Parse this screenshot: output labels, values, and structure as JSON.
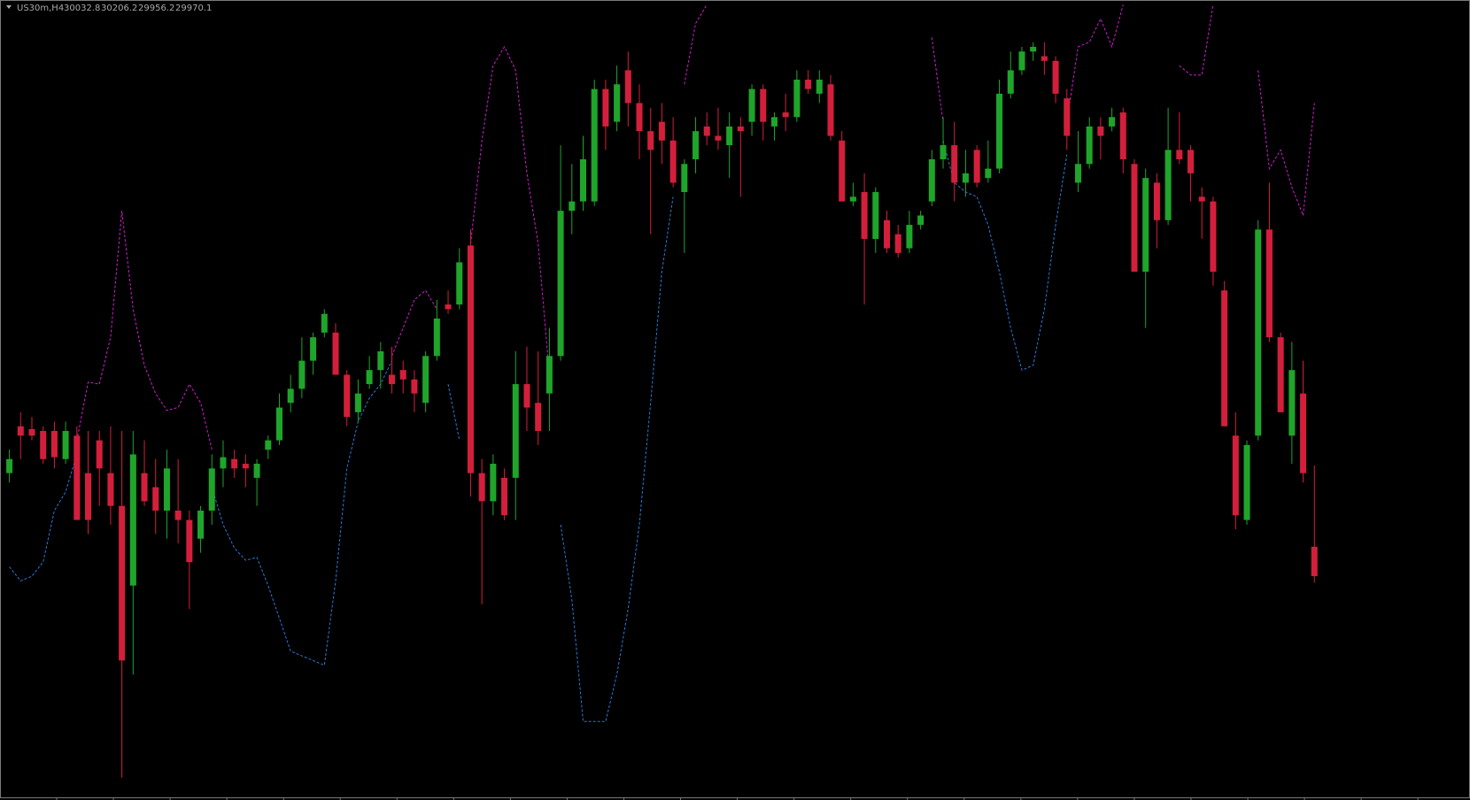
{
  "chart_data": {
    "type": "candlestick",
    "title": "US30m,H4",
    "ylim": [
      29492,
      31200
    ],
    "up_color": "#1fa52a",
    "down_color": "#d41f3c",
    "ohlc": [
      [
        30190,
        30240,
        30170,
        30220
      ],
      [
        30290,
        30320,
        30220,
        30270
      ],
      [
        30284,
        30310,
        30260,
        30270
      ],
      [
        30280,
        30290,
        30210,
        30220
      ],
      [
        30280,
        30300,
        30200,
        30224
      ],
      [
        30220,
        30300,
        30210,
        30280
      ],
      [
        30270,
        30290,
        30090,
        30090
      ],
      [
        30190,
        30280,
        30060,
        30090
      ],
      [
        30260,
        30280,
        30120,
        30200
      ],
      [
        30190,
        30290,
        30080,
        30120
      ],
      [
        30120,
        30280,
        29540,
        29790
      ],
      [
        29950,
        30280,
        29760,
        30230
      ],
      [
        30190,
        30260,
        30120,
        30130
      ],
      [
        30160,
        30220,
        30060,
        30110
      ],
      [
        30110,
        30240,
        30050,
        30200
      ],
      [
        30110,
        30220,
        30040,
        30090
      ],
      [
        30090,
        30110,
        29900,
        30000
      ],
      [
        30050,
        30120,
        30020,
        30110
      ],
      [
        30110,
        30230,
        30080,
        30200
      ],
      [
        30200,
        30260,
        30160,
        30224
      ],
      [
        30220,
        30240,
        30180,
        30200
      ],
      [
        30210,
        30230,
        30160,
        30200
      ],
      [
        30180,
        30220,
        30120,
        30210
      ],
      [
        30240,
        30270,
        30220,
        30260
      ],
      [
        30260,
        30360,
        30250,
        30330
      ],
      [
        30340,
        30400,
        30320,
        30370
      ],
      [
        30370,
        30480,
        30350,
        30430
      ],
      [
        30430,
        30490,
        30400,
        30480
      ],
      [
        30490,
        30540,
        30480,
        30530
      ],
      [
        30490,
        30510,
        30400,
        30400
      ],
      [
        30400,
        30410,
        30290,
        30310
      ],
      [
        30320,
        30390,
        30300,
        30360
      ],
      [
        30380,
        30440,
        30370,
        30410
      ],
      [
        30410,
        30470,
        30370,
        30450
      ],
      [
        30400,
        30460,
        30360,
        30380
      ],
      [
        30410,
        30430,
        30360,
        30390
      ],
      [
        30390,
        30410,
        30320,
        30360
      ],
      [
        30340,
        30450,
        30320,
        30440
      ],
      [
        30440,
        30560,
        30430,
        30520
      ],
      [
        30550,
        30580,
        30530,
        30540
      ],
      [
        30550,
        30670,
        30540,
        30640
      ],
      [
        30676,
        30710,
        30140,
        30190
      ],
      [
        30190,
        30220,
        29910,
        30130
      ],
      [
        30130,
        30230,
        30100,
        30210
      ],
      [
        30180,
        30200,
        30090,
        30100
      ],
      [
        30180,
        30450,
        30090,
        30380
      ],
      [
        30380,
        30460,
        30280,
        30330
      ],
      [
        30340,
        30450,
        30250,
        30280
      ],
      [
        30360,
        30500,
        30280,
        30440
      ],
      [
        30440,
        30890,
        30430,
        30750
      ],
      [
        30750,
        30850,
        30700,
        30770
      ],
      [
        30770,
        30910,
        30750,
        30860
      ],
      [
        30770,
        31030,
        30760,
        31010
      ],
      [
        31010,
        31030,
        30880,
        30930
      ],
      [
        30940,
        31060,
        30920,
        31020
      ],
      [
        31050,
        31090,
        30930,
        30980
      ],
      [
        30980,
        31020,
        30860,
        30920
      ],
      [
        30920,
        30970,
        30700,
        30880
      ],
      [
        30940,
        30980,
        30850,
        30900
      ],
      [
        30900,
        30950,
        30800,
        30810
      ],
      [
        30790,
        30860,
        30660,
        30850
      ],
      [
        30860,
        30950,
        30830,
        30920
      ],
      [
        30930,
        30960,
        30890,
        30910
      ],
      [
        30910,
        30970,
        30880,
        30900
      ],
      [
        30890,
        30960,
        30820,
        30930
      ],
      [
        30930,
        30950,
        30780,
        30920
      ],
      [
        30940,
        31020,
        30910,
        31010
      ],
      [
        31010,
        31020,
        30900,
        30940
      ],
      [
        30930,
        30960,
        30900,
        30950
      ],
      [
        30960,
        31000,
        30920,
        30950
      ],
      [
        30950,
        31050,
        30940,
        31030
      ],
      [
        31030,
        31050,
        31000,
        31010
      ],
      [
        31000,
        31050,
        30980,
        31030
      ],
      [
        31020,
        31040,
        30900,
        30910
      ],
      [
        30900,
        30920,
        30770,
        30770
      ],
      [
        30770,
        30810,
        30760,
        30780
      ],
      [
        30790,
        30830,
        30550,
        30690
      ],
      [
        30690,
        30800,
        30660,
        30790
      ],
      [
        30730,
        30750,
        30660,
        30670
      ],
      [
        30700,
        30720,
        30650,
        30660
      ],
      [
        30670,
        30750,
        30660,
        30720
      ],
      [
        30720,
        30750,
        30710,
        30740
      ],
      [
        30770,
        30880,
        30760,
        30860
      ],
      [
        30860,
        30950,
        30840,
        30890
      ],
      [
        30890,
        30940,
        30770,
        30810
      ],
      [
        30810,
        30880,
        30780,
        30830
      ],
      [
        30880,
        30890,
        30800,
        30810
      ],
      [
        30820,
        30900,
        30810,
        30840
      ],
      [
        30840,
        31030,
        30830,
        31000
      ],
      [
        31000,
        31090,
        30990,
        31050
      ],
      [
        31050,
        31100,
        31040,
        31090
      ],
      [
        31090,
        31110,
        31070,
        31100
      ],
      [
        31080,
        31110,
        31040,
        31070
      ],
      [
        31070,
        31080,
        30980,
        31000
      ],
      [
        30990,
        31010,
        30880,
        30910
      ],
      [
        30810,
        30920,
        30790,
        30850
      ],
      [
        30850,
        30950,
        30840,
        30930
      ],
      [
        30930,
        30950,
        30860,
        30910
      ],
      [
        30930,
        30970,
        30920,
        30950
      ],
      [
        30960,
        30970,
        30830,
        30860
      ],
      [
        30850,
        30860,
        30620,
        30620
      ],
      [
        30620,
        30840,
        30500,
        30820
      ],
      [
        30810,
        30830,
        30670,
        30730
      ],
      [
        30730,
        30970,
        30720,
        30880
      ],
      [
        30880,
        30960,
        30850,
        30860
      ],
      [
        30880,
        30890,
        30770,
        30830
      ],
      [
        30780,
        30800,
        30690,
        30770
      ],
      [
        30770,
        30780,
        30590,
        30620
      ],
      [
        30580,
        30600,
        30290,
        30290
      ],
      [
        30270,
        30320,
        30070,
        30100
      ],
      [
        30090,
        30260,
        30080,
        30250
      ],
      [
        30270,
        30730,
        30260,
        30710
      ],
      [
        30710,
        30810,
        30470,
        30480
      ],
      [
        30480,
        30490,
        30320,
        30320
      ],
      [
        30270,
        30470,
        30210,
        30410
      ],
      [
        30360,
        30430,
        30170,
        30190
      ],
      [
        30032.8,
        30206.2,
        29956.2,
        29970.1
      ]
    ],
    "series": [
      {
        "color": "#c81ec8",
        "values": [
          null,
          null,
          null,
          null,
          null,
          null,
          30260,
          30384,
          30380,
          30480,
          30750,
          30540,
          30420,
          30360,
          30324,
          30330,
          30380,
          30340,
          30240,
          null,
          null,
          null,
          null,
          null,
          null,
          null,
          null,
          null,
          null,
          null,
          null,
          null,
          null,
          null,
          30440,
          30500,
          30560,
          30580,
          30540,
          null,
          null,
          30680,
          30900,
          31060,
          31100,
          31050,
          30830,
          30680,
          30400,
          null,
          null,
          null,
          null,
          null,
          null,
          null,
          null,
          null,
          null,
          null,
          31020,
          31150,
          31190,
          null,
          null,
          null,
          null,
          null,
          null,
          null,
          null,
          null,
          null,
          null,
          null,
          null,
          null,
          null,
          null,
          null,
          null,
          null,
          31120,
          30940,
          null,
          null,
          null,
          null,
          null,
          null,
          null,
          null,
          null,
          null,
          30940,
          31100,
          31110,
          31160,
          31100,
          31190,
          null,
          null,
          null,
          null,
          31060,
          31040,
          31040,
          31190,
          null,
          null,
          null,
          31050,
          30840,
          30880,
          30800,
          30740,
          30980
        ]
      },
      {
        "color": "#2a78d6",
        "values": [
          29990,
          29960,
          29970,
          30000,
          30110,
          30150,
          30230,
          null,
          null,
          null,
          null,
          null,
          null,
          null,
          null,
          null,
          null,
          null,
          30160,
          30080,
          30030,
          30004,
          30010,
          29950,
          29880,
          29810,
          29800,
          29790,
          29780,
          29960,
          30200,
          30300,
          30350,
          30380,
          30430,
          null,
          null,
          null,
          null,
          30380,
          30260,
          null,
          null,
          null,
          null,
          null,
          null,
          null,
          null,
          30080,
          29920,
          29660,
          29660,
          29660,
          29760,
          29900,
          30080,
          30340,
          30620,
          30780,
          null,
          null,
          null,
          null,
          null,
          null,
          null,
          null,
          null,
          null,
          null,
          null,
          null,
          null,
          null,
          null,
          null,
          null,
          null,
          null,
          null,
          null,
          null,
          30900,
          30810,
          30790,
          30780,
          30720,
          30620,
          30500,
          30410,
          30420,
          30540,
          30720,
          30870,
          null,
          null,
          null,
          null,
          null,
          null,
          null,
          null,
          null,
          null,
          null,
          null,
          null,
          null,
          null,
          null,
          null,
          null,
          null,
          null,
          null,
          null
        ]
      }
    ]
  }
}
